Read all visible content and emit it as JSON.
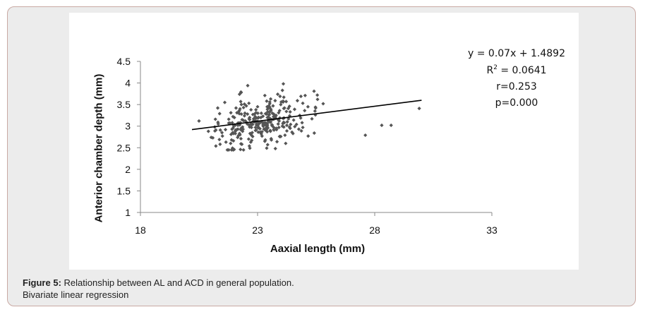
{
  "chart_data": {
    "type": "scatter",
    "xlabel": "Aaxial length (mm)",
    "ylabel": "Anterior chamber depth (mm)",
    "xlim": [
      18,
      33
    ],
    "ylim": [
      1,
      4.5
    ],
    "xticks": [
      "18",
      "23",
      "28",
      "33"
    ],
    "yticks": [
      "1",
      "1.5",
      "2",
      "2.5",
      "3",
      "3.5",
      "4",
      "4.5"
    ],
    "grid": false,
    "point_color": "#555555",
    "trendline": {
      "equation_prefix": "y = 0.07x + 1.4892",
      "r2_label": "R",
      "r2_sup": "2",
      "r2_value": " = 0.0641",
      "r_text": "r=0.253",
      "p_text": "p=0.000",
      "x": [
        20.2,
        30.0
      ],
      "y": [
        2.92,
        3.6
      ]
    },
    "x": [],
    "y": []
  },
  "caption": {
    "label": "Figure 5:",
    "text": " Relationship between AL and ACD in general population.",
    "line2": "Bivariate linear regression"
  }
}
